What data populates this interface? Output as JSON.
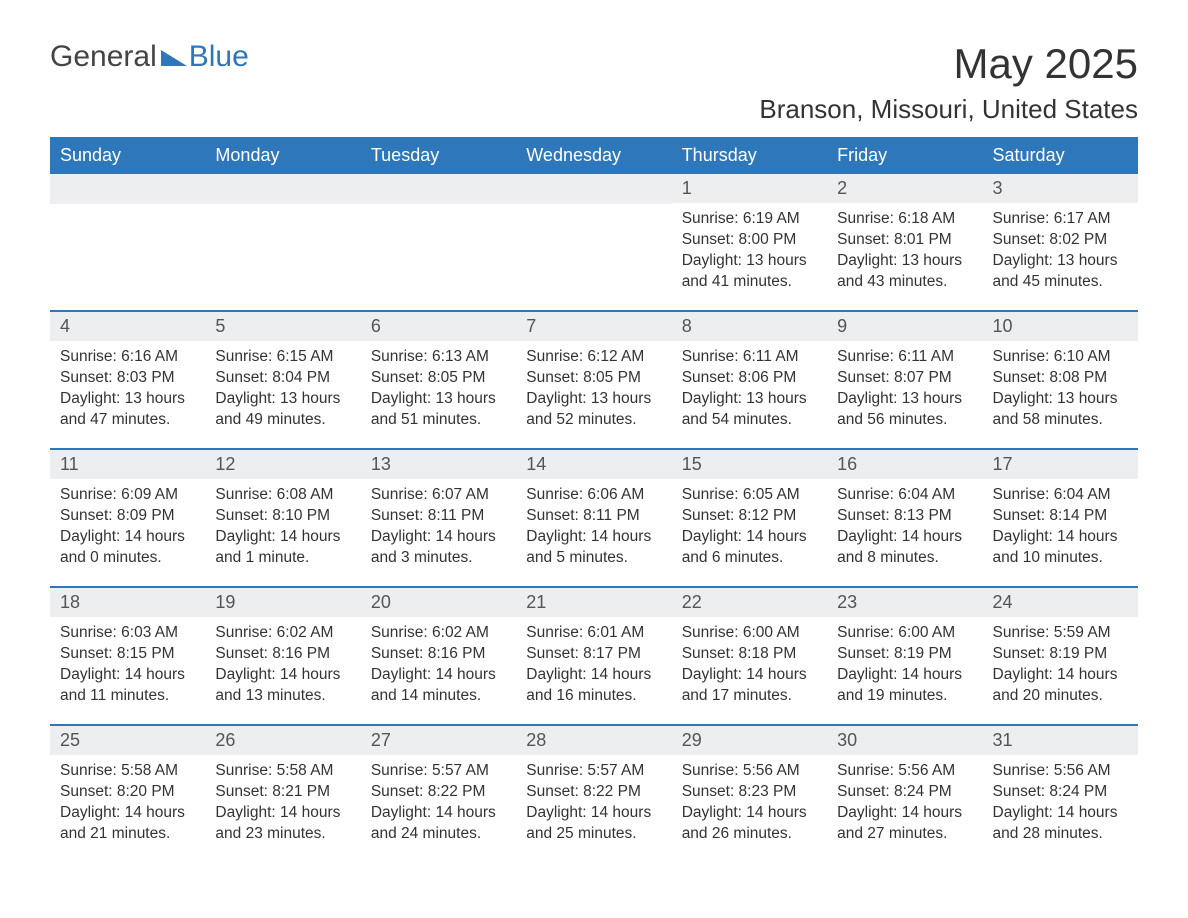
{
  "logo": {
    "part1": "General",
    "part2": "Blue",
    "triangle_color": "#2f77bb"
  },
  "title": "May 2025",
  "location": "Branson, Missouri, United States",
  "colors": {
    "header_bg": "#2f77bb",
    "header_text": "#ffffff",
    "daynum_bg": "#eceef0",
    "body_text": "#333333",
    "week_border": "#2f77bb"
  },
  "weekday_labels": [
    "Sunday",
    "Monday",
    "Tuesday",
    "Wednesday",
    "Thursday",
    "Friday",
    "Saturday"
  ],
  "weeks": [
    [
      {
        "day": ""
      },
      {
        "day": ""
      },
      {
        "day": ""
      },
      {
        "day": ""
      },
      {
        "day": "1",
        "sunrise": "Sunrise: 6:19 AM",
        "sunset": "Sunset: 8:00 PM",
        "daylight": "Daylight: 13 hours and 41 minutes."
      },
      {
        "day": "2",
        "sunrise": "Sunrise: 6:18 AM",
        "sunset": "Sunset: 8:01 PM",
        "daylight": "Daylight: 13 hours and 43 minutes."
      },
      {
        "day": "3",
        "sunrise": "Sunrise: 6:17 AM",
        "sunset": "Sunset: 8:02 PM",
        "daylight": "Daylight: 13 hours and 45 minutes."
      }
    ],
    [
      {
        "day": "4",
        "sunrise": "Sunrise: 6:16 AM",
        "sunset": "Sunset: 8:03 PM",
        "daylight": "Daylight: 13 hours and 47 minutes."
      },
      {
        "day": "5",
        "sunrise": "Sunrise: 6:15 AM",
        "sunset": "Sunset: 8:04 PM",
        "daylight": "Daylight: 13 hours and 49 minutes."
      },
      {
        "day": "6",
        "sunrise": "Sunrise: 6:13 AM",
        "sunset": "Sunset: 8:05 PM",
        "daylight": "Daylight: 13 hours and 51 minutes."
      },
      {
        "day": "7",
        "sunrise": "Sunrise: 6:12 AM",
        "sunset": "Sunset: 8:05 PM",
        "daylight": "Daylight: 13 hours and 52 minutes."
      },
      {
        "day": "8",
        "sunrise": "Sunrise: 6:11 AM",
        "sunset": "Sunset: 8:06 PM",
        "daylight": "Daylight: 13 hours and 54 minutes."
      },
      {
        "day": "9",
        "sunrise": "Sunrise: 6:11 AM",
        "sunset": "Sunset: 8:07 PM",
        "daylight": "Daylight: 13 hours and 56 minutes."
      },
      {
        "day": "10",
        "sunrise": "Sunrise: 6:10 AM",
        "sunset": "Sunset: 8:08 PM",
        "daylight": "Daylight: 13 hours and 58 minutes."
      }
    ],
    [
      {
        "day": "11",
        "sunrise": "Sunrise: 6:09 AM",
        "sunset": "Sunset: 8:09 PM",
        "daylight": "Daylight: 14 hours and 0 minutes."
      },
      {
        "day": "12",
        "sunrise": "Sunrise: 6:08 AM",
        "sunset": "Sunset: 8:10 PM",
        "daylight": "Daylight: 14 hours and 1 minute."
      },
      {
        "day": "13",
        "sunrise": "Sunrise: 6:07 AM",
        "sunset": "Sunset: 8:11 PM",
        "daylight": "Daylight: 14 hours and 3 minutes."
      },
      {
        "day": "14",
        "sunrise": "Sunrise: 6:06 AM",
        "sunset": "Sunset: 8:11 PM",
        "daylight": "Daylight: 14 hours and 5 minutes."
      },
      {
        "day": "15",
        "sunrise": "Sunrise: 6:05 AM",
        "sunset": "Sunset: 8:12 PM",
        "daylight": "Daylight: 14 hours and 6 minutes."
      },
      {
        "day": "16",
        "sunrise": "Sunrise: 6:04 AM",
        "sunset": "Sunset: 8:13 PM",
        "daylight": "Daylight: 14 hours and 8 minutes."
      },
      {
        "day": "17",
        "sunrise": "Sunrise: 6:04 AM",
        "sunset": "Sunset: 8:14 PM",
        "daylight": "Daylight: 14 hours and 10 minutes."
      }
    ],
    [
      {
        "day": "18",
        "sunrise": "Sunrise: 6:03 AM",
        "sunset": "Sunset: 8:15 PM",
        "daylight": "Daylight: 14 hours and 11 minutes."
      },
      {
        "day": "19",
        "sunrise": "Sunrise: 6:02 AM",
        "sunset": "Sunset: 8:16 PM",
        "daylight": "Daylight: 14 hours and 13 minutes."
      },
      {
        "day": "20",
        "sunrise": "Sunrise: 6:02 AM",
        "sunset": "Sunset: 8:16 PM",
        "daylight": "Daylight: 14 hours and 14 minutes."
      },
      {
        "day": "21",
        "sunrise": "Sunrise: 6:01 AM",
        "sunset": "Sunset: 8:17 PM",
        "daylight": "Daylight: 14 hours and 16 minutes."
      },
      {
        "day": "22",
        "sunrise": "Sunrise: 6:00 AM",
        "sunset": "Sunset: 8:18 PM",
        "daylight": "Daylight: 14 hours and 17 minutes."
      },
      {
        "day": "23",
        "sunrise": "Sunrise: 6:00 AM",
        "sunset": "Sunset: 8:19 PM",
        "daylight": "Daylight: 14 hours and 19 minutes."
      },
      {
        "day": "24",
        "sunrise": "Sunrise: 5:59 AM",
        "sunset": "Sunset: 8:19 PM",
        "daylight": "Daylight: 14 hours and 20 minutes."
      }
    ],
    [
      {
        "day": "25",
        "sunrise": "Sunrise: 5:58 AM",
        "sunset": "Sunset: 8:20 PM",
        "daylight": "Daylight: 14 hours and 21 minutes."
      },
      {
        "day": "26",
        "sunrise": "Sunrise: 5:58 AM",
        "sunset": "Sunset: 8:21 PM",
        "daylight": "Daylight: 14 hours and 23 minutes."
      },
      {
        "day": "27",
        "sunrise": "Sunrise: 5:57 AM",
        "sunset": "Sunset: 8:22 PM",
        "daylight": "Daylight: 14 hours and 24 minutes."
      },
      {
        "day": "28",
        "sunrise": "Sunrise: 5:57 AM",
        "sunset": "Sunset: 8:22 PM",
        "daylight": "Daylight: 14 hours and 25 minutes."
      },
      {
        "day": "29",
        "sunrise": "Sunrise: 5:56 AM",
        "sunset": "Sunset: 8:23 PM",
        "daylight": "Daylight: 14 hours and 26 minutes."
      },
      {
        "day": "30",
        "sunrise": "Sunrise: 5:56 AM",
        "sunset": "Sunset: 8:24 PM",
        "daylight": "Daylight: 14 hours and 27 minutes."
      },
      {
        "day": "31",
        "sunrise": "Sunrise: 5:56 AM",
        "sunset": "Sunset: 8:24 PM",
        "daylight": "Daylight: 14 hours and 28 minutes."
      }
    ]
  ]
}
